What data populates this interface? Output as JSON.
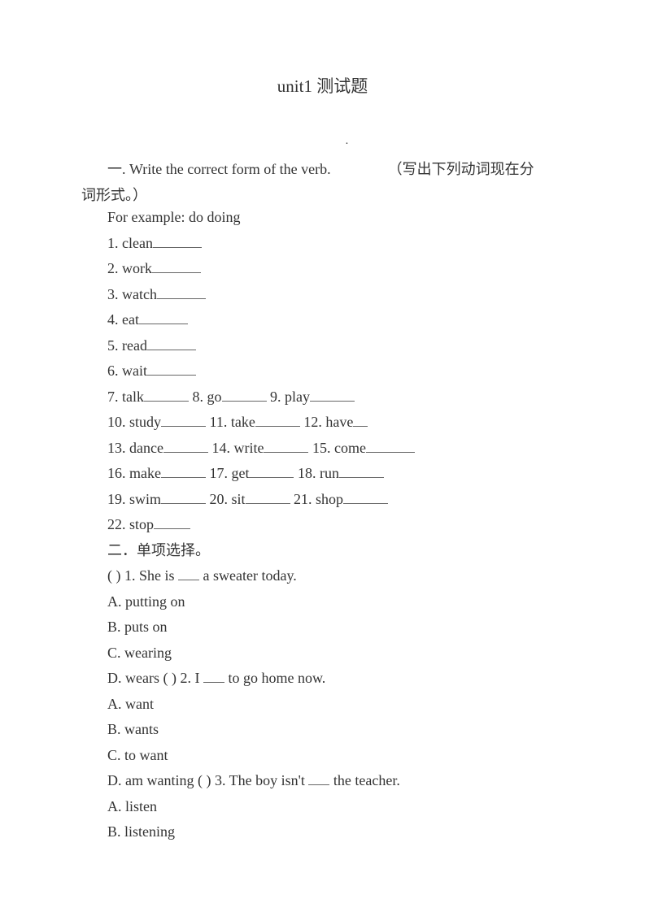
{
  "title": "unit1  测试题",
  "dot": "·",
  "section1": {
    "num": "一",
    "en": ". Write the correct form of the verb.",
    "cn": "（写出下列动词现在分",
    "cn2": "词形式。）",
    "example": "For example: do doing",
    "items": {
      "l1": "1. clean",
      "l2": "2. work",
      "l3": "3. watch",
      "l4": "4. eat",
      "l5": "5. read",
      "l6": "6. wait",
      "l7a": "7. talk",
      "l7b": " 8. go",
      "l7c": " 9. play",
      "l8a": "10. study",
      "l8b": " 11. take",
      "l8c": " 12. have",
      "l9a": "13. dance",
      "l9b": " 14. write",
      "l9c": " 15. come",
      "l10a": "16. make",
      "l10b": " 17. get",
      "l10c": " 18. run",
      "l11a": "19. swim",
      "l11b": " 20. sit",
      "l11c": " 21. shop",
      "l12": "22. stop"
    }
  },
  "section2": {
    "heading": "二．单项选择。",
    "q1": {
      "stem_a": "( ) 1. She is ",
      "stem_b": " a sweater today.",
      "A": "A. putting on",
      "B": "B. puts on",
      "C": "C. wearing",
      "D_a": "D. wears ( ) 2. I ",
      "D_b": " to go home now."
    },
    "q2": {
      "A": "A. want",
      "B": "B. wants",
      "C": "C. to want",
      "D_a": "D. am wanting ( ) 3. The boy isn't ",
      "D_b": " the teacher."
    },
    "q3": {
      "A": "A. listen",
      "B": "B. listening"
    }
  }
}
